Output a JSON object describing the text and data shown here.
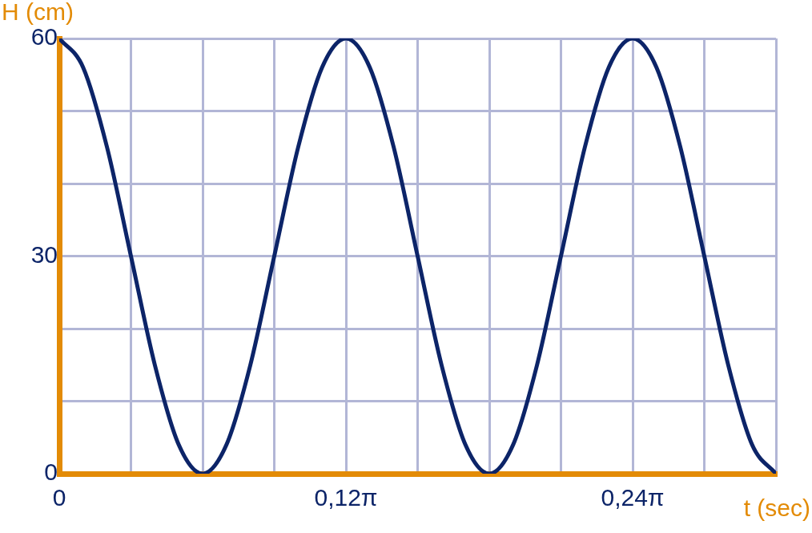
{
  "chart_data": {
    "type": "line",
    "xlabel": "t (sec)",
    "ylabel": "H (cm)",
    "x": [
      0,
      0.01,
      0.02,
      0.03,
      0.04,
      0.05,
      0.06,
      0.07,
      0.08,
      0.09,
      0.1,
      0.11,
      0.12,
      0.13,
      0.14,
      0.15,
      0.16,
      0.17,
      0.18,
      0.19,
      0.2,
      0.21,
      0.22,
      0.23,
      0.24,
      0.25,
      0.26,
      0.27,
      0.28,
      0.29,
      0.3
    ],
    "series": [
      {
        "color": "#0c2468",
        "values": [
          60,
          56,
          45,
          30,
          15,
          4,
          0,
          4,
          15,
          30,
          45,
          56,
          60,
          56,
          45,
          30,
          15,
          4,
          0,
          4,
          15,
          30,
          45,
          56,
          60,
          56,
          45,
          30,
          15,
          4,
          0
        ]
      }
    ],
    "xlim": [
      0,
      0.3
    ],
    "xticks": [
      0,
      {
        "value": 0.03,
        "label": null
      },
      {
        "value": 0.06,
        "label": null
      },
      {
        "value": 0.09,
        "label": null
      },
      {
        "value": 0.12,
        "label": "0,12π"
      },
      {
        "value": 0.15,
        "label": null
      },
      {
        "value": 0.18,
        "label": null
      },
      {
        "value": 0.21,
        "label": null
      },
      {
        "value": 0.24,
        "label": "0,24π"
      },
      {
        "value": 0.27,
        "label": null
      },
      {
        "value": 0.3,
        "label": null
      }
    ],
    "ylim": [
      0,
      60
    ],
    "yticks": [
      0,
      {
        "value": 10,
        "label": null
      },
      {
        "value": 20,
        "label": null
      },
      30,
      {
        "value": 40,
        "label": null
      },
      {
        "value": 50,
        "label": null
      },
      60
    ],
    "grid": true,
    "legend": false,
    "marker": "none",
    "line_style": "solid"
  }
}
